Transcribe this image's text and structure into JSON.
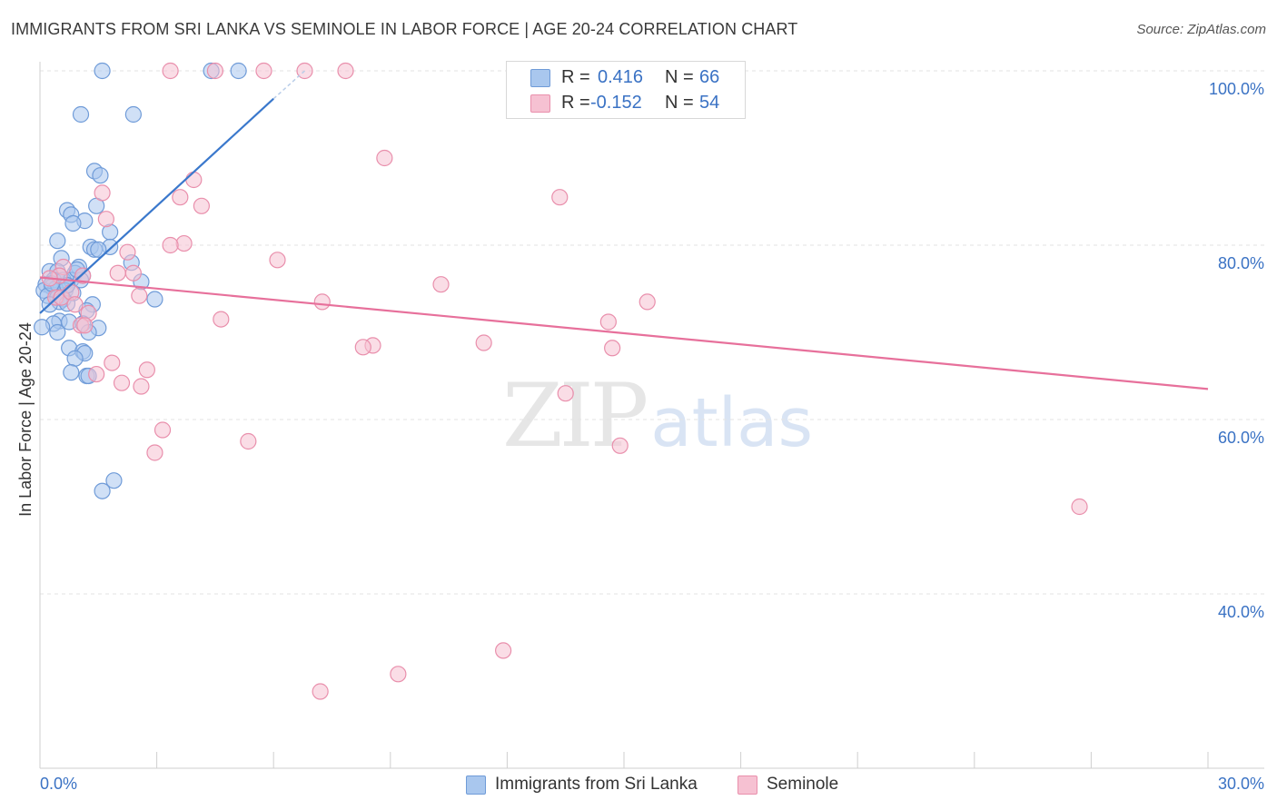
{
  "title": "IMMIGRANTS FROM SRI LANKA VS SEMINOLE IN LABOR FORCE | AGE 20-24 CORRELATION CHART",
  "source": "Source: ZipAtlas.com",
  "watermark": {
    "zip": "ZIP",
    "atlas": "atlas"
  },
  "legend": {
    "rows": [
      {
        "r_label": "R =",
        "r_value": "0.416",
        "n_label": "N =",
        "n_value": "66",
        "color": "#a9c7ee",
        "border": "#6f9bd8"
      },
      {
        "r_label": "R =",
        "r_value": "-0.152",
        "n_label": "N =",
        "n_value": "54",
        "color": "#f6c1d2",
        "border": "#e98fac"
      }
    ]
  },
  "bottom_legend": [
    {
      "label": "Immigrants from Sri Lanka",
      "color": "#a9c7ee",
      "border": "#6f9bd8"
    },
    {
      "label": "Seminole",
      "color": "#f6c1d2",
      "border": "#e98fac"
    }
  ],
  "chart_data": {
    "type": "scatter",
    "title": "IMMIGRANTS FROM SRI LANKA VS SEMINOLE IN LABOR FORCE | AGE 20-24 CORRELATION CHART",
    "xlabel": "",
    "ylabel": "In Labor Force | Age 20-24",
    "xlim": [
      0,
      30
    ],
    "ylim": [
      20,
      100
    ],
    "x_tick_labels": [
      "0.0%",
      "30.0%"
    ],
    "y_ticks": [
      40,
      60,
      80,
      100
    ],
    "y_tick_labels": [
      "40.0%",
      "60.0%",
      "80.0%",
      "100.0%"
    ],
    "grid": true,
    "series": [
      {
        "name": "Immigrants from Sri Lanka",
        "color": "#6f9bd8",
        "fill": "#a9c7ee",
        "trend_color": "#3a78cc",
        "trend": {
          "x0": 0.0,
          "y0": 72.2,
          "x1": 6.0,
          "y1": 96.8,
          "dash_x1": 6.8,
          "dash_y1": 100.0
        },
        "points": [
          [
            1.6,
            100
          ],
          [
            4.4,
            100
          ],
          [
            5.1,
            100
          ],
          [
            1.05,
            95
          ],
          [
            2.4,
            95
          ],
          [
            1.4,
            88.5
          ],
          [
            1.55,
            88
          ],
          [
            0.7,
            84
          ],
          [
            0.8,
            83.5
          ],
          [
            1.45,
            84.5
          ],
          [
            1.15,
            82.8
          ],
          [
            0.85,
            82.5
          ],
          [
            1.8,
            81.5
          ],
          [
            0.45,
            80.5
          ],
          [
            1.3,
            79.8
          ],
          [
            1.8,
            79.8
          ],
          [
            1.4,
            79.5
          ],
          [
            1.5,
            79.5
          ],
          [
            0.55,
            78.5
          ],
          [
            2.35,
            78
          ],
          [
            1.0,
            77.5
          ],
          [
            0.25,
            77
          ],
          [
            0.45,
            77
          ],
          [
            0.5,
            76.5
          ],
          [
            0.9,
            76.8
          ],
          [
            1.1,
            76.5
          ],
          [
            0.35,
            76
          ],
          [
            0.6,
            76
          ],
          [
            0.8,
            76
          ],
          [
            1.05,
            76
          ],
          [
            2.6,
            75.8
          ],
          [
            0.15,
            75.5
          ],
          [
            0.3,
            75.2
          ],
          [
            0.4,
            75
          ],
          [
            0.1,
            74.8
          ],
          [
            0.65,
            74.8
          ],
          [
            0.85,
            74.5
          ],
          [
            0.2,
            74.2
          ],
          [
            0.45,
            74
          ],
          [
            0.6,
            73.8
          ],
          [
            2.95,
            73.8
          ],
          [
            0.5,
            73.5
          ],
          [
            0.25,
            73.2
          ],
          [
            0.7,
            73.3
          ],
          [
            1.35,
            73.2
          ],
          [
            1.2,
            72.5
          ],
          [
            0.5,
            71.3
          ],
          [
            0.75,
            71.2
          ],
          [
            0.35,
            71
          ],
          [
            1.1,
            71
          ],
          [
            0.05,
            70.6
          ],
          [
            1.5,
            70.5
          ],
          [
            1.25,
            70
          ],
          [
            0.45,
            70
          ],
          [
            0.75,
            68.2
          ],
          [
            1.1,
            67.8
          ],
          [
            1.15,
            67.6
          ],
          [
            0.9,
            67
          ],
          [
            0.8,
            65.4
          ],
          [
            1.2,
            65
          ],
          [
            1.25,
            65
          ],
          [
            1.9,
            53
          ],
          [
            1.6,
            51.8
          ],
          [
            0.3,
            75.6
          ],
          [
            0.7,
            75.4
          ],
          [
            0.95,
            77.2
          ]
        ]
      },
      {
        "name": "Seminole",
        "color": "#e98fac",
        "fill": "#f6c1d2",
        "trend_color": "#e7709b",
        "trend": {
          "x0": 0.0,
          "y0": 76.3,
          "x1": 30.0,
          "y1": 63.5
        },
        "points": [
          [
            3.35,
            100
          ],
          [
            4.5,
            100
          ],
          [
            5.75,
            100
          ],
          [
            6.8,
            100
          ],
          [
            7.85,
            100
          ],
          [
            16.6,
            100
          ],
          [
            8.85,
            90
          ],
          [
            3.95,
            87.5
          ],
          [
            1.6,
            86
          ],
          [
            13.35,
            85.5
          ],
          [
            3.6,
            85.5
          ],
          [
            4.15,
            84.5
          ],
          [
            1.7,
            83
          ],
          [
            3.7,
            80.2
          ],
          [
            3.35,
            80
          ],
          [
            2.25,
            79.2
          ],
          [
            6.1,
            78.3
          ],
          [
            0.6,
            77.5
          ],
          [
            2.0,
            76.8
          ],
          [
            2.4,
            76.8
          ],
          [
            0.5,
            76.5
          ],
          [
            1.1,
            76.5
          ],
          [
            0.25,
            76.2
          ],
          [
            10.3,
            75.5
          ],
          [
            2.55,
            74.2
          ],
          [
            0.4,
            74
          ],
          [
            0.55,
            74
          ],
          [
            7.25,
            73.5
          ],
          [
            15.6,
            73.5
          ],
          [
            1.25,
            72.2
          ],
          [
            4.65,
            71.5
          ],
          [
            14.6,
            71.2
          ],
          [
            1.05,
            70.8
          ],
          [
            1.15,
            70.8
          ],
          [
            8.55,
            68.5
          ],
          [
            8.3,
            68.3
          ],
          [
            11.4,
            68.8
          ],
          [
            14.7,
            68.2
          ],
          [
            1.85,
            66.5
          ],
          [
            1.45,
            65.2
          ],
          [
            2.75,
            65.7
          ],
          [
            2.1,
            64.2
          ],
          [
            2.6,
            63.8
          ],
          [
            13.5,
            63
          ],
          [
            3.15,
            58.8
          ],
          [
            5.35,
            57.5
          ],
          [
            14.9,
            57
          ],
          [
            2.95,
            56.2
          ],
          [
            26.7,
            50
          ],
          [
            11.9,
            33.5
          ],
          [
            9.2,
            30.8
          ],
          [
            7.2,
            28.8
          ],
          [
            0.8,
            74.6
          ],
          [
            0.9,
            73.2
          ]
        ]
      }
    ]
  }
}
